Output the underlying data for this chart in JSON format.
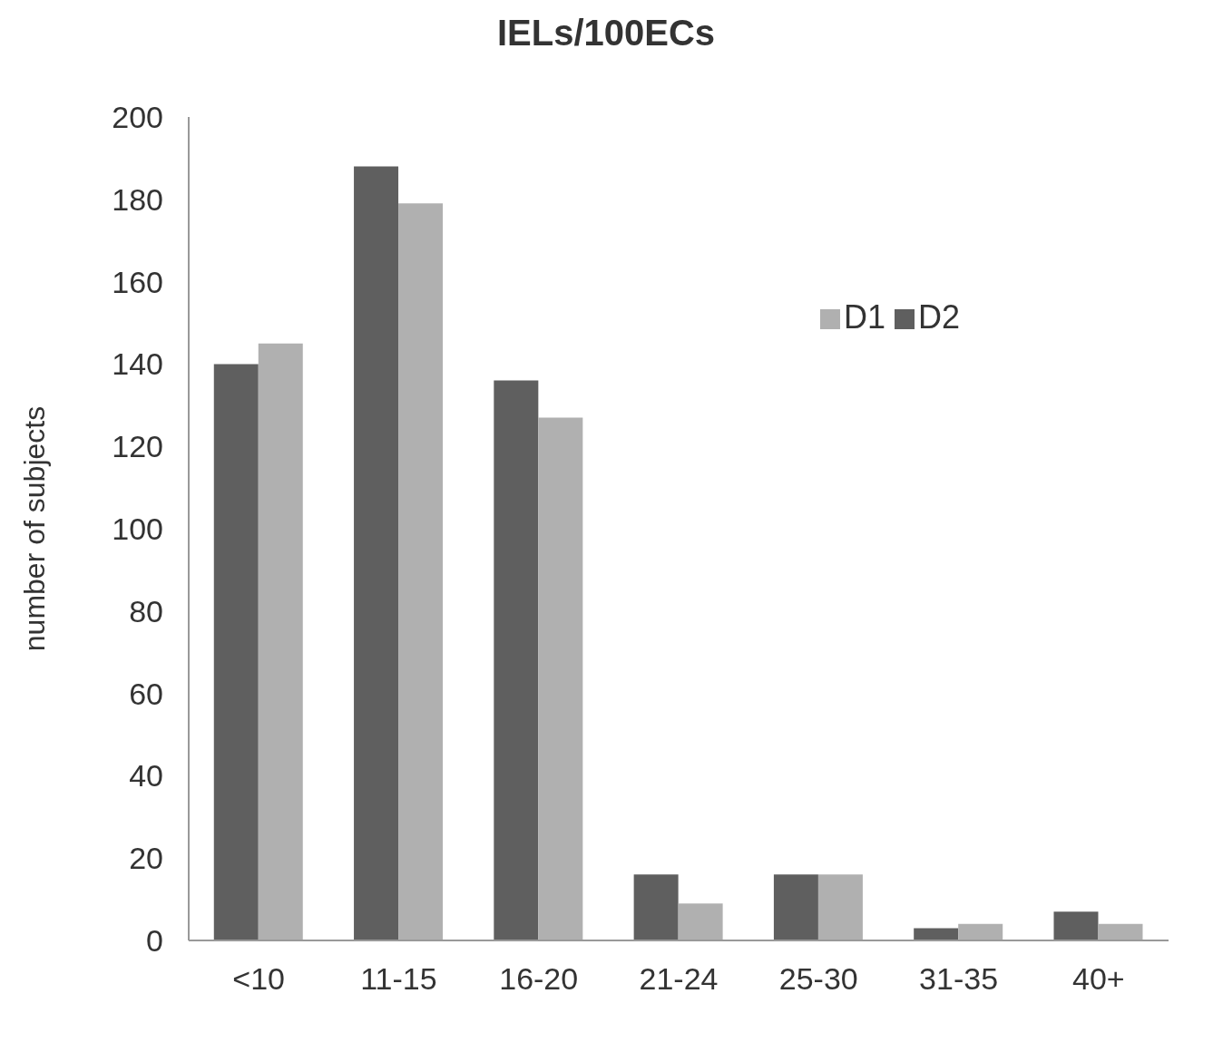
{
  "chart_data": {
    "type": "bar",
    "title": "IELs/100ECs",
    "ylabel": "number of subjects",
    "categories": [
      "<10",
      "11-15",
      "16-20",
      "21-24",
      "25-30",
      "31-35",
      "40+"
    ],
    "series": [
      {
        "name": "D2",
        "color": "#5f5f5f",
        "values": [
          140,
          188,
          136,
          16,
          16,
          3,
          7
        ]
      },
      {
        "name": "D1",
        "color": "#b0b0b0",
        "values": [
          145,
          179,
          127,
          9,
          16,
          4,
          4
        ]
      }
    ],
    "ylim": [
      0,
      200
    ],
    "yticks": [
      0,
      20,
      40,
      60,
      80,
      100,
      120,
      140,
      160,
      180,
      200
    ],
    "grid": false,
    "legend": "top right"
  }
}
